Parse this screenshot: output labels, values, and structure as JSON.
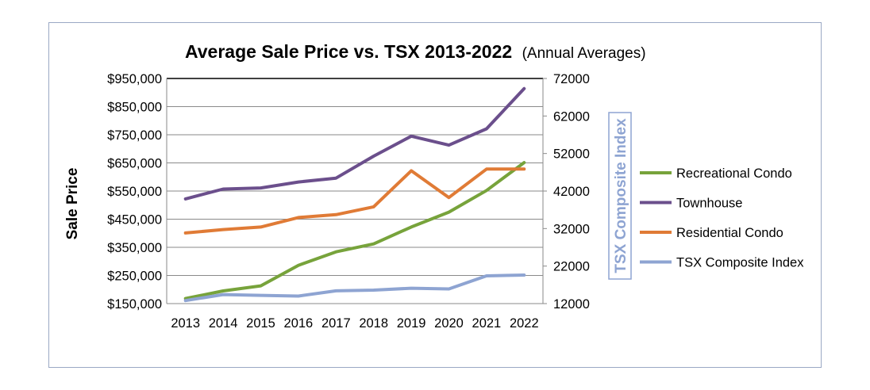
{
  "chart_data": {
    "type": "line",
    "title": "Average Sale Price vs. TSX 2013-2022",
    "subtitle": "(Annual Averages)",
    "ylabel": "Sale Price",
    "y2label": "TSX Composite Index",
    "xlabel": "",
    "categories": [
      "2013",
      "2014",
      "2015",
      "2016",
      "2017",
      "2018",
      "2019",
      "2020",
      "2021",
      "2022"
    ],
    "ylim": [
      150000,
      950000
    ],
    "yticks": [
      "$150,000",
      "$250,000",
      "$350,000",
      "$450,000",
      "$550,000",
      "$650,000",
      "$750,000",
      "$850,000",
      "$950,000"
    ],
    "y2lim": [
      12000,
      72000
    ],
    "y2ticks": [
      "12000",
      "22000",
      "32000",
      "42000",
      "52000",
      "62000",
      "72000"
    ],
    "grid": true,
    "legend_position": "right",
    "series": [
      {
        "name": "Recreational Condo",
        "axis": "left",
        "color": "#77a33b",
        "values": [
          168000,
          195000,
          213000,
          286000,
          334000,
          362000,
          422000,
          475000,
          552000,
          651000
        ]
      },
      {
        "name": "Townhouse",
        "axis": "left",
        "color": "#6b4f8c",
        "values": [
          522000,
          557000,
          561000,
          582000,
          596000,
          674000,
          745000,
          713000,
          771000,
          914000
        ]
      },
      {
        "name": "Residential Condo",
        "axis": "left",
        "color": "#e07b36",
        "values": [
          401000,
          413000,
          422000,
          456000,
          466000,
          494000,
          622000,
          527000,
          628000,
          628000
        ]
      },
      {
        "name": "TSX Composite Index",
        "axis": "right",
        "color": "#8ea4d2",
        "values": [
          12800,
          14400,
          14200,
          14000,
          15400,
          15600,
          16100,
          15900,
          19400,
          19600
        ]
      }
    ]
  }
}
